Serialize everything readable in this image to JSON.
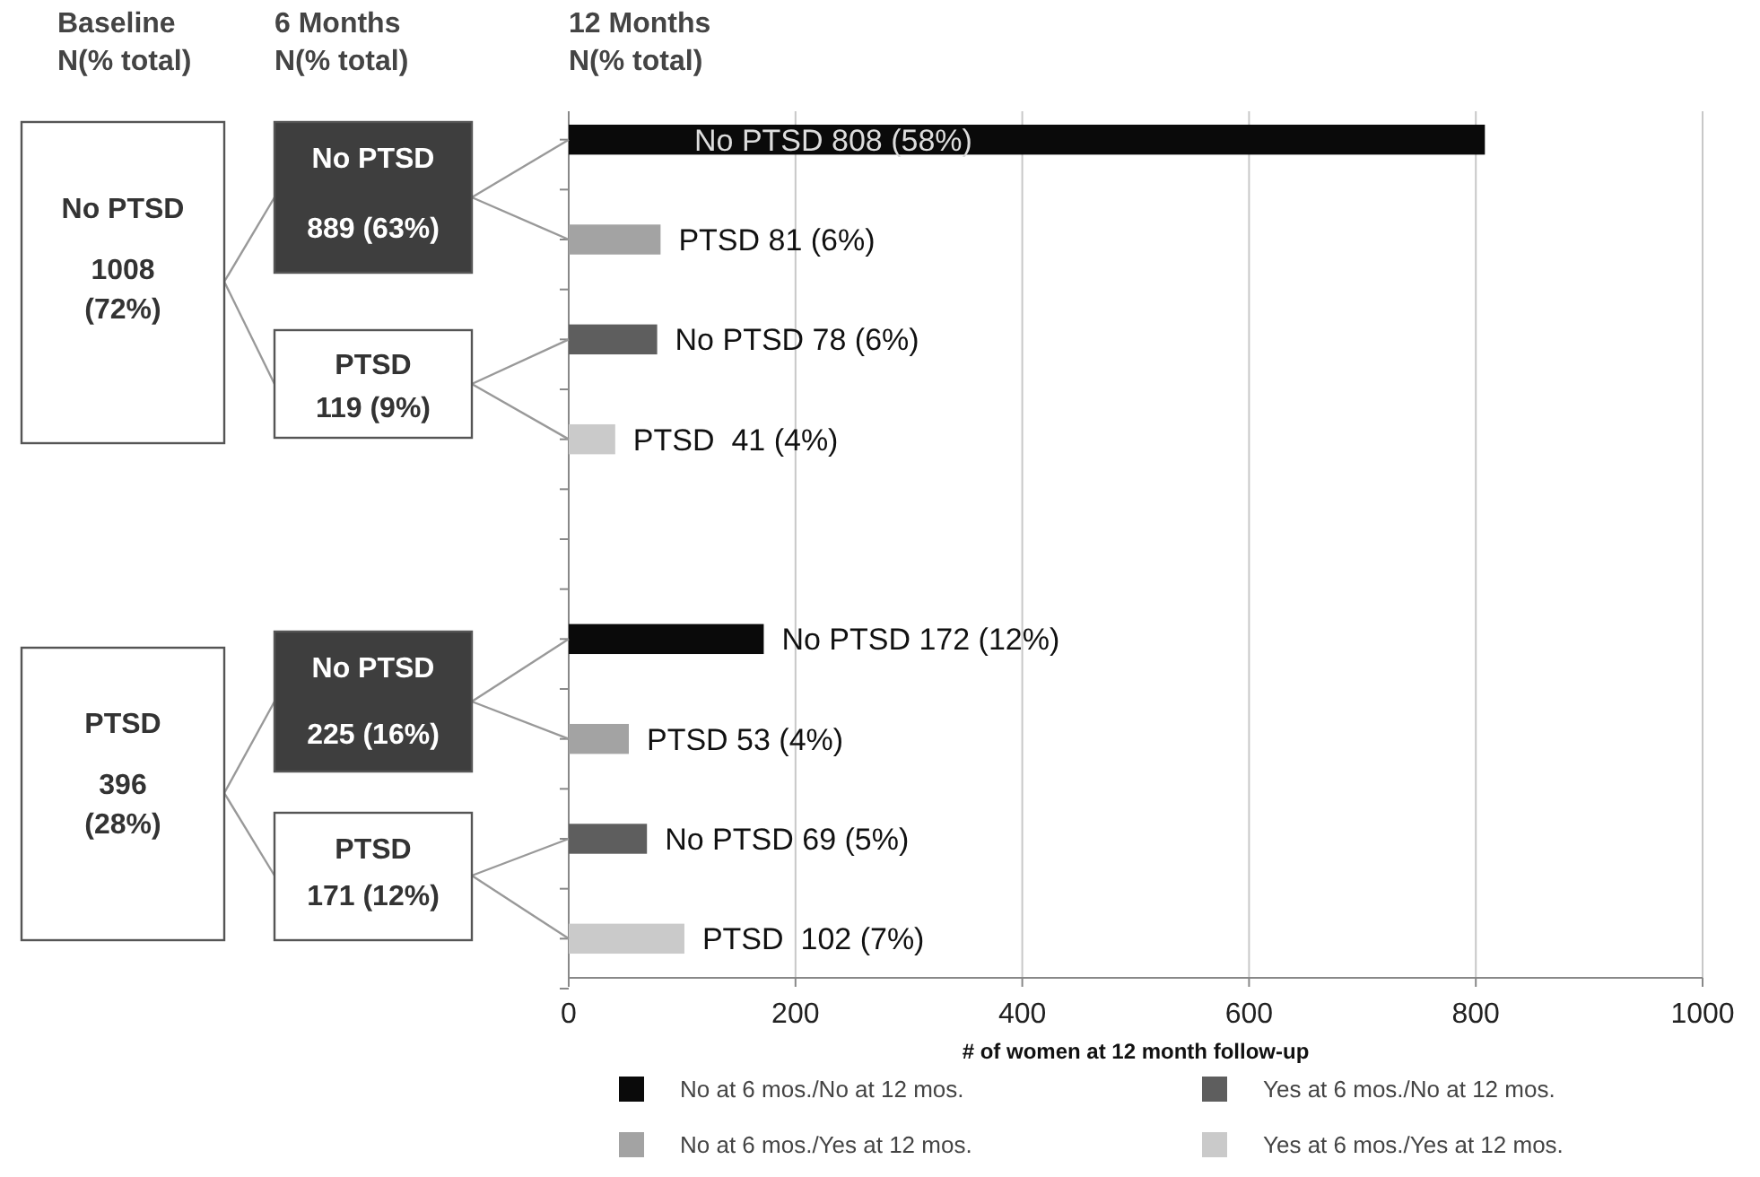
{
  "chart_data": {
    "type": "bar",
    "orientation": "horizontal",
    "xlabel": "# of women at 12 month follow-up",
    "categories": [
      null,
      null,
      null,
      null,
      null,
      null,
      null,
      null,
      null
    ],
    "xlim": [
      0,
      1000
    ],
    "xticks": [
      0,
      200,
      400,
      600,
      800,
      1000
    ],
    "grid": "x",
    "legend": "bottom",
    "series": [
      {
        "name": "No at 6 mos./No at 12 mos.",
        "color": "#0a0a0a",
        "values": [
          808,
          null,
          null,
          null,
          null,
          172,
          null,
          null,
          null
        ],
        "value_labels": [
          "No PTSD 808 (58%)",
          null,
          null,
          null,
          null,
          "No PTSD 172 (12%)",
          null,
          null,
          null
        ]
      },
      {
        "name": "No at 6 mos./Yes at 12 mos.",
        "color": "#a3a3a3",
        "values": [
          null,
          81,
          null,
          null,
          null,
          null,
          53,
          null,
          null
        ],
        "value_labels": [
          null,
          "PTSD 81 (6%)",
          null,
          null,
          null,
          null,
          "PTSD 53 (4%)",
          null,
          null
        ]
      },
      {
        "name": "Yes at 6 mos./No at 12 mos.",
        "color": "#5e5e5e",
        "values": [
          null,
          null,
          78,
          null,
          null,
          null,
          null,
          69,
          null
        ],
        "value_labels": [
          null,
          null,
          "No PTSD 78 (6%)",
          null,
          null,
          null,
          null,
          "No PTSD 69 (5%)",
          null
        ]
      },
      {
        "name": "Yes at 6 mos./Yes at 12 mos.",
        "color": "#cacaca",
        "values": [
          null,
          null,
          null,
          41,
          null,
          null,
          null,
          null,
          102
        ],
        "value_labels": [
          null,
          null,
          null,
          "PTSD  41 (4%)",
          null,
          null,
          null,
          null,
          "PTSD  102 (7%)"
        ]
      }
    ],
    "annotations": [
      "Baseline",
      "N(% total)",
      "6 Months",
      "N(% total)",
      "12 Months",
      "N(% total)",
      "No PTSD",
      "1008",
      "(72%)",
      "PTSD",
      "396",
      "(28%)",
      "No PTSD",
      "889 (63%)",
      "PTSD",
      "119 (9%)",
      "No PTSD",
      "225 (16%)",
      "PTSD",
      "171 (12%)"
    ]
  }
}
